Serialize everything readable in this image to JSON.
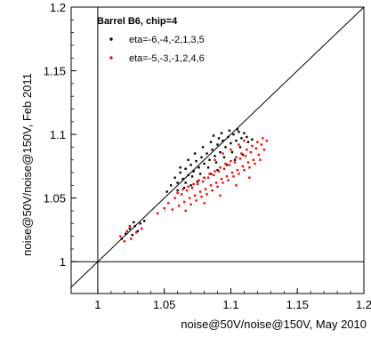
{
  "chart_data": {
    "type": "scatter",
    "title": "",
    "xlabel": "noise@50V/noise@150V, May 2010",
    "ylabel": "noise@50V/noise@150V, Feb 2011",
    "xlim": [
      0.98,
      1.2
    ],
    "ylim": [
      0.975,
      1.2
    ],
    "x_ticks": [
      1,
      1.05,
      1.1,
      1.15,
      1.2
    ],
    "x_tick_labels": [
      "1",
      "1.05",
      "1.1",
      "1.15",
      "1.2"
    ],
    "y_ticks": [
      1,
      1.05,
      1.1,
      1.15,
      1.2
    ],
    "y_tick_labels": [
      "1",
      "1.05",
      "1.1",
      "1.15",
      "1.2"
    ],
    "grid": false,
    "legend_title": "Barrel B6, chip=4",
    "legend_position": "top-left",
    "reference_lines": [
      {
        "kind": "diagonal",
        "from": [
          0.98,
          0.98
        ],
        "to": [
          1.2,
          1.2
        ]
      },
      {
        "kind": "vertical",
        "x": 1.0
      },
      {
        "kind": "horizontal",
        "y": 1.0
      }
    ],
    "series": [
      {
        "name": "eta=-6,-4,-2,1,3,5",
        "color": "#000000",
        "points": [
          [
            1.018,
            1.018
          ],
          [
            1.021,
            1.022
          ],
          [
            1.024,
            1.026
          ],
          [
            1.026,
            1.021
          ],
          [
            1.028,
            1.028
          ],
          [
            1.03,
            1.024
          ],
          [
            1.032,
            1.03
          ],
          [
            1.027,
            1.031
          ],
          [
            1.035,
            1.032
          ],
          [
            1.052,
            1.055
          ],
          [
            1.055,
            1.06
          ],
          [
            1.058,
            1.066
          ],
          [
            1.06,
            1.062
          ],
          [
            1.062,
            1.07
          ],
          [
            1.064,
            1.065
          ],
          [
            1.066,
            1.073
          ],
          [
            1.068,
            1.068
          ],
          [
            1.07,
            1.076
          ],
          [
            1.072,
            1.071
          ],
          [
            1.074,
            1.079
          ],
          [
            1.076,
            1.074
          ],
          [
            1.078,
            1.082
          ],
          [
            1.08,
            1.077
          ],
          [
            1.082,
            1.085
          ],
          [
            1.084,
            1.08
          ],
          [
            1.086,
            1.088
          ],
          [
            1.088,
            1.083
          ],
          [
            1.09,
            1.092
          ],
          [
            1.092,
            1.086
          ],
          [
            1.094,
            1.095
          ],
          [
            1.096,
            1.09
          ],
          [
            1.098,
            1.098
          ],
          [
            1.1,
            1.093
          ],
          [
            1.102,
            1.1
          ],
          [
            1.104,
            1.095
          ],
          [
            1.106,
            1.102
          ],
          [
            1.108,
            1.097
          ],
          [
            1.11,
            1.101
          ],
          [
            1.112,
            1.098
          ],
          [
            1.066,
            1.062
          ],
          [
            1.071,
            1.067
          ],
          [
            1.077,
            1.069
          ],
          [
            1.083,
            1.074
          ],
          [
            1.089,
            1.078
          ],
          [
            1.095,
            1.082
          ],
          [
            1.101,
            1.086
          ],
          [
            1.107,
            1.09
          ],
          [
            1.113,
            1.094
          ],
          [
            1.116,
            1.096
          ],
          [
            1.06,
            1.056
          ],
          [
            1.065,
            1.058
          ],
          [
            1.07,
            1.06
          ],
          [
            1.075,
            1.063
          ],
          [
            1.08,
            1.066
          ],
          [
            1.085,
            1.069
          ],
          [
            1.09,
            1.072
          ],
          [
            1.097,
            1.076
          ],
          [
            1.103,
            1.08
          ],
          [
            1.109,
            1.084
          ],
          [
            1.073,
            1.085
          ],
          [
            1.079,
            1.09
          ],
          [
            1.085,
            1.094
          ],
          [
            1.091,
            1.097
          ],
          [
            1.087,
            1.099
          ],
          [
            1.093,
            1.101
          ],
          [
            1.099,
            1.103
          ],
          [
            1.105,
            1.104
          ],
          [
            1.068,
            1.08
          ],
          [
            1.062,
            1.074
          ]
        ]
      },
      {
        "name": "eta=-5,-3,-1,2,4,6",
        "color": "#ff0000",
        "points": [
          [
            1.017,
            1.02
          ],
          [
            1.02,
            1.016
          ],
          [
            1.022,
            1.024
          ],
          [
            1.025,
            1.018
          ],
          [
            1.029,
            1.023
          ],
          [
            1.033,
            1.026
          ],
          [
            1.024,
            1.028
          ],
          [
            1.045,
            1.038
          ],
          [
            1.05,
            1.042
          ],
          [
            1.053,
            1.046
          ],
          [
            1.056,
            1.041
          ],
          [
            1.058,
            1.05
          ],
          [
            1.061,
            1.044
          ],
          [
            1.063,
            1.053
          ],
          [
            1.065,
            1.047
          ],
          [
            1.067,
            1.056
          ],
          [
            1.069,
            1.05
          ],
          [
            1.071,
            1.058
          ],
          [
            1.073,
            1.052
          ],
          [
            1.075,
            1.061
          ],
          [
            1.077,
            1.055
          ],
          [
            1.079,
            1.063
          ],
          [
            1.081,
            1.057
          ],
          [
            1.083,
            1.066
          ],
          [
            1.085,
            1.06
          ],
          [
            1.087,
            1.068
          ],
          [
            1.089,
            1.062
          ],
          [
            1.091,
            1.071
          ],
          [
            1.093,
            1.065
          ],
          [
            1.095,
            1.073
          ],
          [
            1.097,
            1.067
          ],
          [
            1.099,
            1.076
          ],
          [
            1.101,
            1.07
          ],
          [
            1.103,
            1.078
          ],
          [
            1.105,
            1.072
          ],
          [
            1.107,
            1.081
          ],
          [
            1.109,
            1.075
          ],
          [
            1.111,
            1.083
          ],
          [
            1.113,
            1.078
          ],
          [
            1.115,
            1.086
          ],
          [
            1.117,
            1.08
          ],
          [
            1.119,
            1.089
          ],
          [
            1.121,
            1.084
          ],
          [
            1.123,
            1.092
          ],
          [
            1.125,
            1.088
          ],
          [
            1.127,
            1.095
          ],
          [
            1.124,
            1.097
          ],
          [
            1.12,
            1.094
          ],
          [
            1.116,
            1.091
          ],
          [
            1.112,
            1.088
          ],
          [
            1.108,
            1.085
          ],
          [
            1.104,
            1.082
          ],
          [
            1.1,
            1.079
          ],
          [
            1.096,
            1.077
          ],
          [
            1.092,
            1.074
          ],
          [
            1.088,
            1.071
          ],
          [
            1.084,
            1.069
          ],
          [
            1.08,
            1.066
          ],
          [
            1.076,
            1.064
          ],
          [
            1.072,
            1.061
          ],
          [
            1.068,
            1.059
          ],
          [
            1.064,
            1.057
          ],
          [
            1.06,
            1.054
          ],
          [
            1.07,
            1.045
          ],
          [
            1.074,
            1.048
          ],
          [
            1.078,
            1.051
          ],
          [
            1.082,
            1.053
          ],
          [
            1.086,
            1.056
          ],
          [
            1.09,
            1.059
          ],
          [
            1.094,
            1.062
          ],
          [
            1.098,
            1.064
          ],
          [
            1.102,
            1.067
          ],
          [
            1.106,
            1.069
          ],
          [
            1.11,
            1.072
          ],
          [
            1.114,
            1.074
          ],
          [
            1.118,
            1.077
          ],
          [
            1.122,
            1.08
          ],
          [
            1.066,
            1.04
          ],
          [
            1.08,
            1.046
          ],
          [
            1.092,
            1.052
          ],
          [
            1.104,
            1.06
          ],
          [
            1.114,
            1.066
          ],
          [
            1.088,
            1.08
          ],
          [
            1.094,
            1.085
          ],
          [
            1.1,
            1.088
          ],
          [
            1.106,
            1.092
          ],
          [
            1.11,
            1.095
          ]
        ]
      }
    ]
  }
}
